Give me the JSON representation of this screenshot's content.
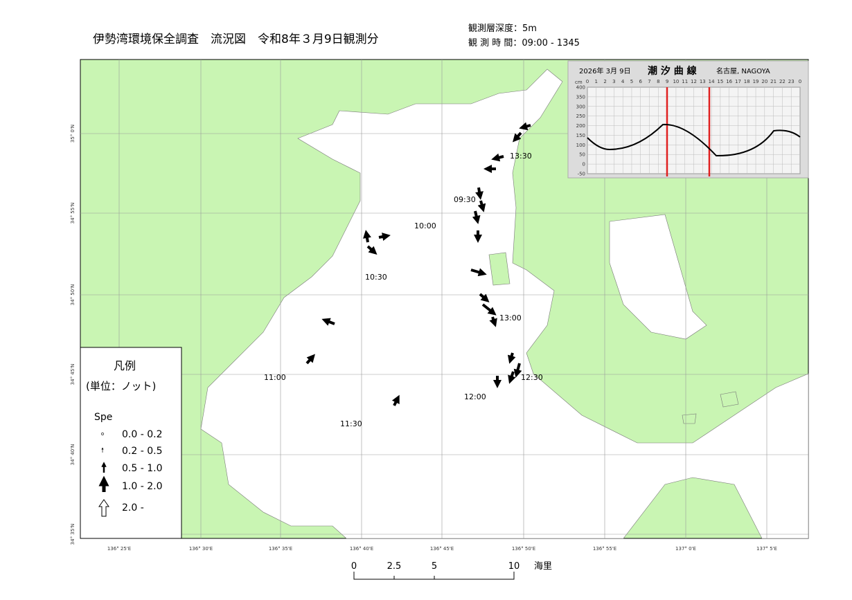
{
  "header": {
    "title": "伊勢湾環境保全調査　流況図　令和8年３月9日観測分",
    "depth": "観測層深度：5m",
    "time": "観 測 時 間：09:00 - 1345"
  },
  "map": {
    "lat_labels": [
      "35° 0'N",
      "34° 55'N",
      "34° 50'N",
      "34° 45'N",
      "34° 40'N",
      "34° 35'N"
    ],
    "lon_labels": [
      "136° 25'E",
      "136° 30'E",
      "136° 35'E",
      "136° 40'E",
      "136° 45'E",
      "136° 50'E",
      "136° 55'E",
      "137° 0'E",
      "137° 5'E"
    ],
    "time_labels": [
      "13:30",
      "09:30",
      "10:00",
      "10:30",
      "11:00",
      "11:30",
      "12:00",
      "12:30",
      "13:00"
    ]
  },
  "legend": {
    "title": "凡例",
    "unit": "(単位：ノット)",
    "field": "Spe",
    "items": [
      "0.0 - 0.2",
      "0.2 - 0.5",
      "0.5 - 1.0",
      "1.0 - 2.0",
      "2.0 -"
    ]
  },
  "scale": {
    "ticks": [
      "0",
      "2.5",
      "5",
      "10"
    ],
    "unit": "海里"
  },
  "tide_inset": {
    "date": "2026年 3月 9日",
    "title": "潮 汐 曲 線",
    "place": "名古屋,  NAGOYA",
    "unit": "cm",
    "hours": [
      "0",
      "1",
      "2",
      "3",
      "4",
      "5",
      "6",
      "7",
      "8",
      "9",
      "10",
      "11",
      "12",
      "13",
      "14",
      "15",
      "16",
      "17",
      "18",
      "19",
      "20",
      "21",
      "22",
      "23",
      "0"
    ],
    "levels": [
      "400",
      "350",
      "300",
      "250",
      "200",
      "150",
      "100",
      "50",
      "0",
      "-50"
    ]
  }
}
